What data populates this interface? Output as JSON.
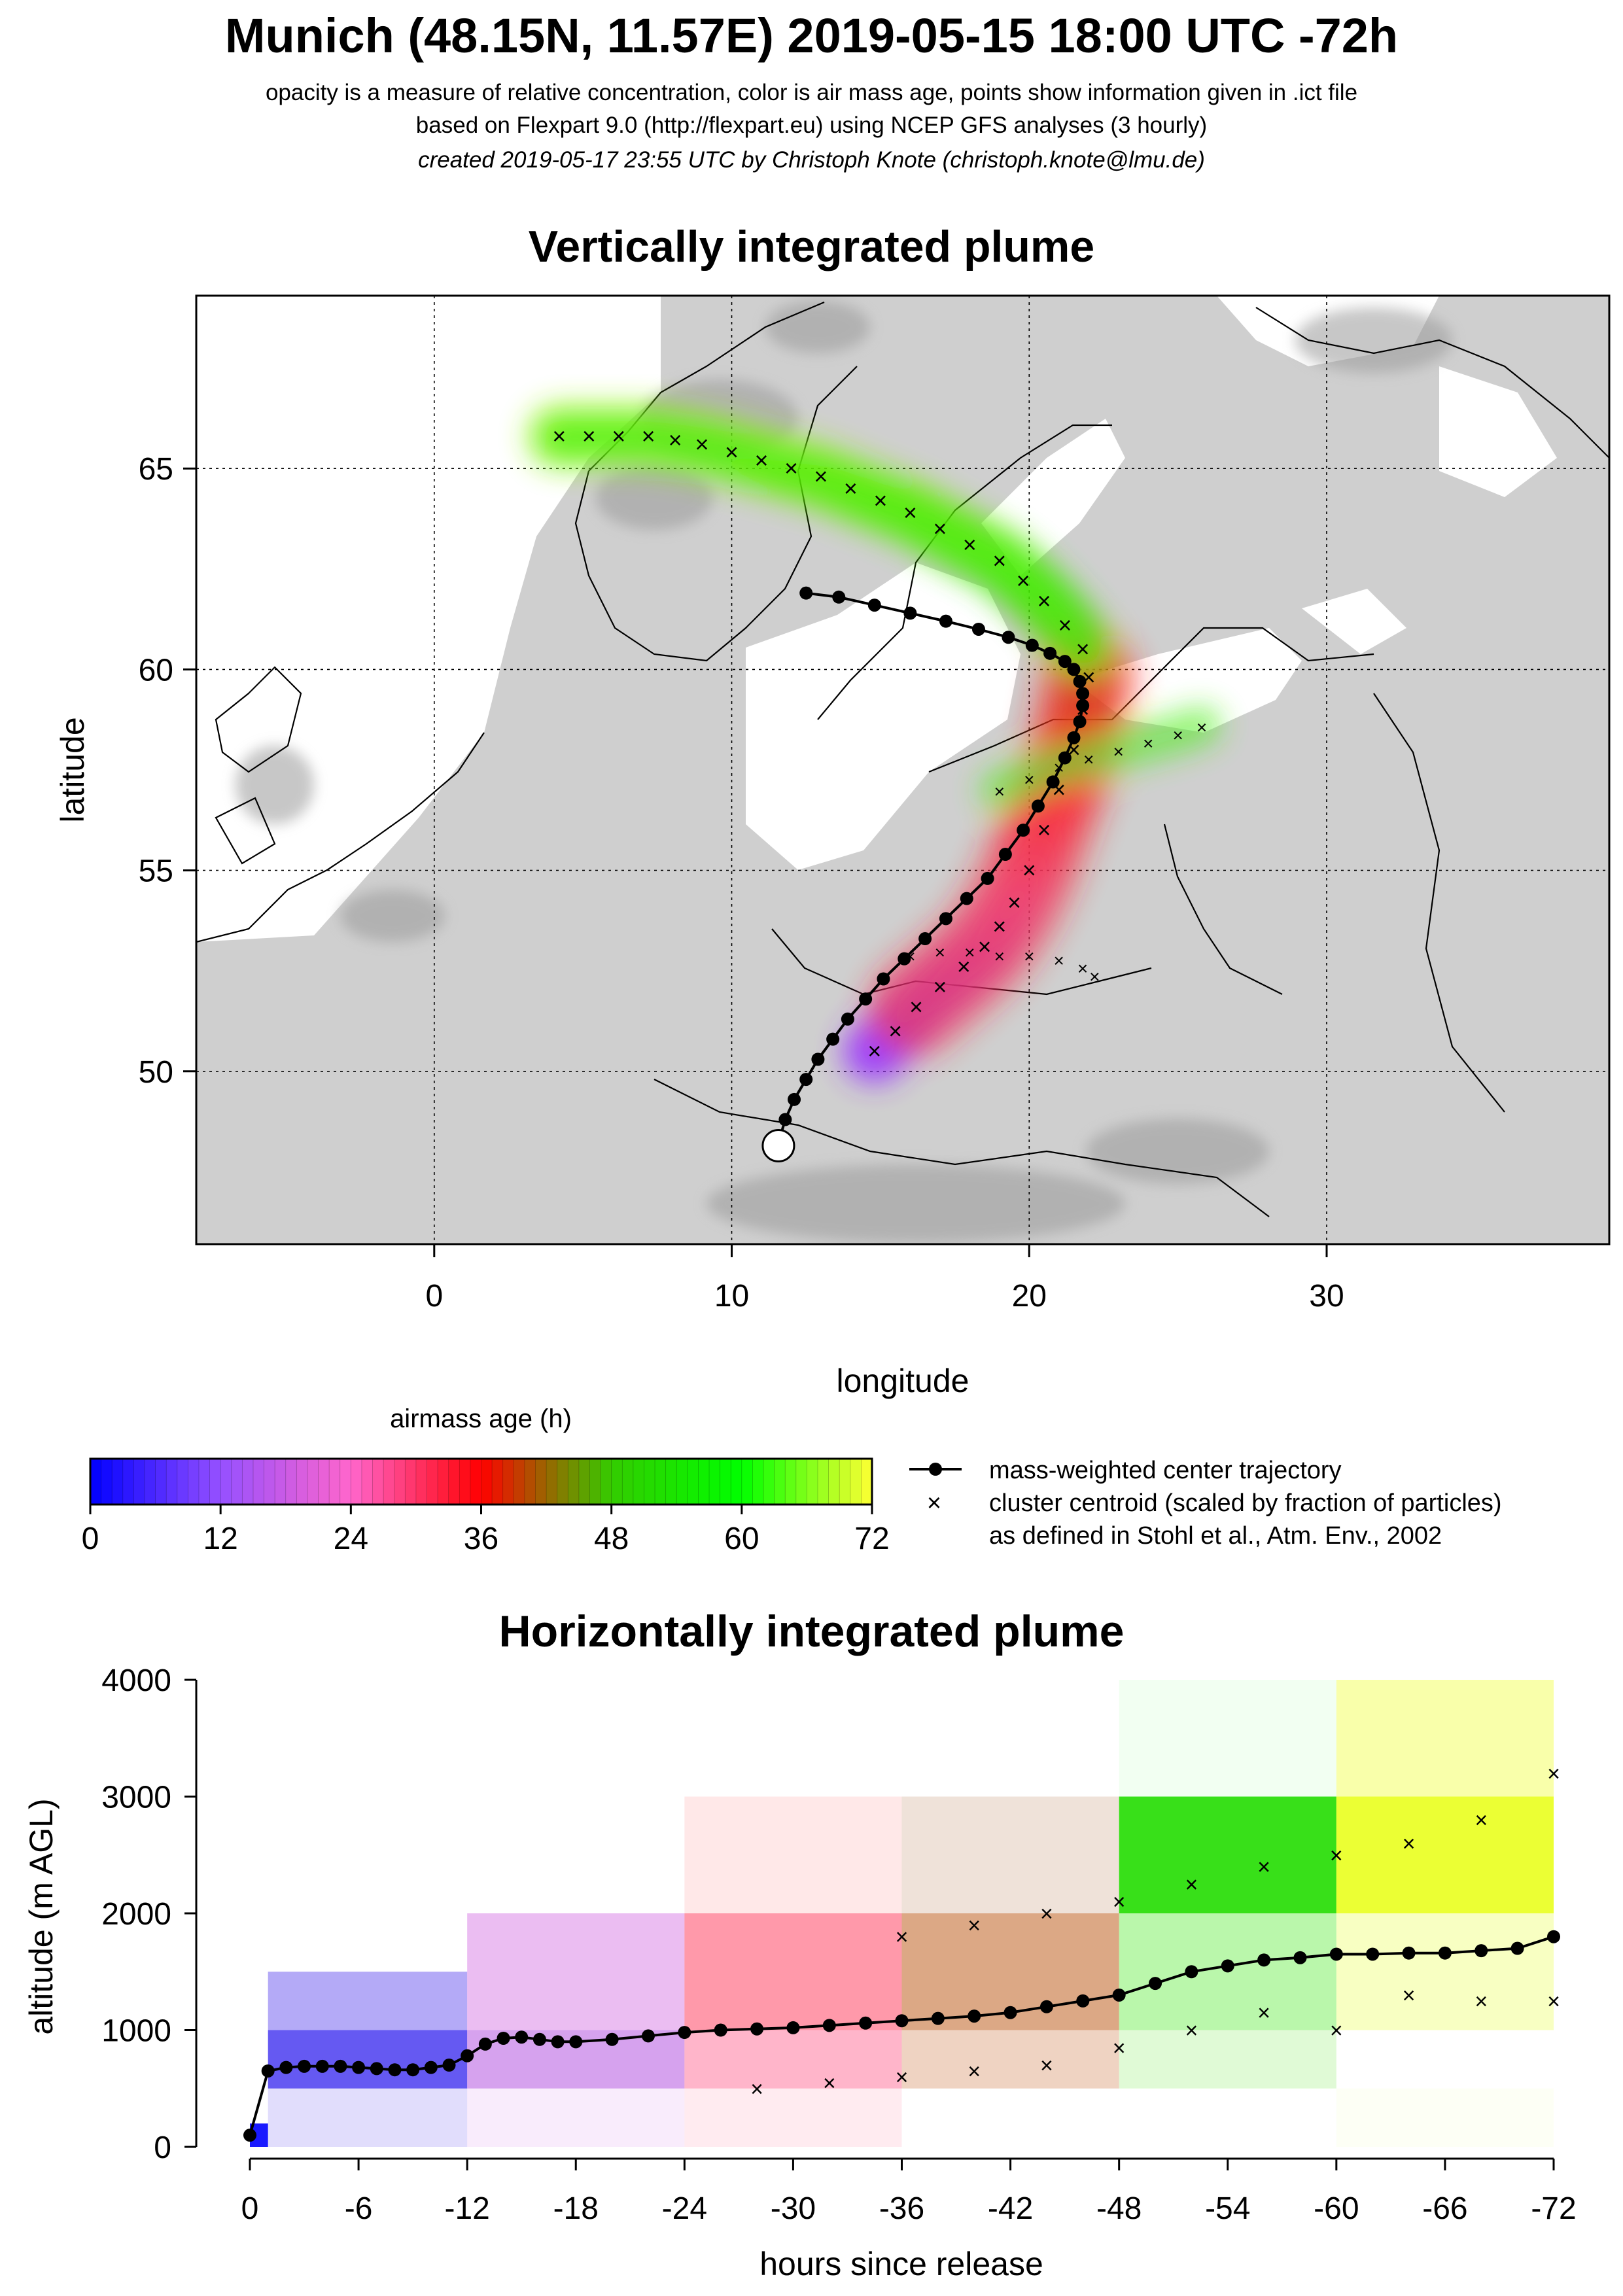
{
  "header": {
    "title": "Munich (48.15N, 11.57E) 2019-05-15 18:00 UTC -72h",
    "subtitle_1": "opacity is a measure of relative concentration, color is air mass age, points show information given in .ict file",
    "subtitle_2": "based on Flexpart 9.0 (http://flexpart.eu) using NCEP GFS analyses (3 hourly)",
    "subtitle_3": "created 2019-05-17 23:55 UTC by Christoph Knote (christoph.knote@lmu.de)"
  },
  "colors": {
    "age_0": "#0000ff",
    "age_24": "#ff66cc",
    "age_36": "#ff0000",
    "age_48": "#33cc00",
    "age_72": "#ffff33",
    "terrain": "#bdbdbd",
    "water": "#ffffff"
  },
  "map_panel": {
    "title": "Vertically integrated plume",
    "xlabel": "longitude",
    "ylabel": "latitude",
    "release_point": {
      "lon": 11.57,
      "lat": 48.15
    },
    "chart_data": {
      "type": "line",
      "title": "Vertically integrated plume",
      "xlabel": "longitude",
      "ylabel": "latitude",
      "xlim": [
        -8,
        39.5
      ],
      "ylim": [
        45.7,
        69.3
      ],
      "x_ticks": [
        0,
        10,
        20,
        30
      ],
      "y_ticks": [
        50,
        55,
        60,
        65
      ],
      "grid": true,
      "series": [
        {
          "name": "mass-weighted center trajectory",
          "lon": [
            11.6,
            11.8,
            12.1,
            12.5,
            12.9,
            13.4,
            13.9,
            14.5,
            15.1,
            15.8,
            16.5,
            17.2,
            17.9,
            18.6,
            19.2,
            19.8,
            20.3,
            20.8,
            21.2,
            21.5,
            21.7,
            21.8,
            21.8,
            21.7,
            21.5,
            21.2,
            20.7,
            20.1,
            19.3,
            18.3,
            17.2,
            16.0,
            14.8,
            13.6,
            12.5
          ],
          "lat": [
            48.3,
            48.8,
            49.3,
            49.8,
            50.3,
            50.8,
            51.3,
            51.8,
            52.3,
            52.8,
            53.3,
            53.8,
            54.3,
            54.8,
            55.4,
            56.0,
            56.6,
            57.2,
            57.8,
            58.3,
            58.7,
            59.1,
            59.4,
            59.7,
            60.0,
            60.2,
            60.4,
            60.6,
            60.8,
            61.0,
            61.2,
            61.4,
            61.6,
            61.8,
            61.9
          ]
        },
        {
          "name": "cluster centroid (scaled by fraction of particles)",
          "lon": [
            4.2,
            5.2,
            6.2,
            7.2,
            8.1,
            9.0,
            10.0,
            11.0,
            12.0,
            13.0,
            14.0,
            15.0,
            16.0,
            17.0,
            18.0,
            19.0,
            19.8,
            20.5,
            21.2,
            21.8,
            22.0,
            21.8,
            21.5,
            21.0,
            20.5,
            20.0,
            19.5,
            19.0,
            18.5,
            17.8,
            17.0,
            16.2,
            15.5,
            14.8
          ],
          "lat": [
            65.8,
            65.8,
            65.8,
            65.8,
            65.7,
            65.6,
            65.4,
            65.2,
            65.0,
            64.8,
            64.5,
            64.2,
            63.9,
            63.5,
            63.1,
            62.7,
            62.2,
            61.7,
            61.1,
            60.5,
            59.8,
            59.0,
            58.0,
            57.0,
            56.0,
            55.0,
            54.2,
            53.6,
            53.1,
            52.6,
            52.1,
            51.6,
            51.0,
            50.5
          ]
        },
        {
          "name": "cluster centroid (scaled by fraction of particles)",
          "lon": [
            16.0,
            17.0,
            18.0,
            19.0,
            20.0,
            21.0,
            21.8,
            22.2
          ],
          "lat": [
            52.9,
            53.0,
            53.0,
            52.9,
            52.9,
            52.8,
            52.6,
            52.4
          ]
        },
        {
          "name": "cluster centroid (scaled by fraction of particles)",
          "lon": [
            19.0,
            20.0,
            21.0,
            22.0,
            23.0,
            24.0,
            25.0,
            25.8
          ],
          "lat": [
            57.0,
            57.3,
            57.6,
            57.8,
            58.0,
            58.2,
            58.4,
            58.6
          ]
        }
      ]
    }
  },
  "legend": {
    "colorbar_title": "airmass age (h)",
    "colorbar_ticks": [
      "0",
      "12",
      "24",
      "36",
      "48",
      "60",
      "72"
    ],
    "trajectory_label": "mass-weighted center trajectory",
    "cluster_label_1": "cluster centroid (scaled by fraction of particles)",
    "cluster_label_2": "as defined in Stohl et al., Atm. Env., 2002"
  },
  "profile_panel": {
    "title": "Horizontally integrated plume",
    "xlabel": "hours since release",
    "ylabel": "altitude (m AGL)",
    "chart_data": {
      "type": "line",
      "title": "Horizontally integrated plume",
      "xlabel": "hours since release",
      "ylabel": "altitude (m AGL)",
      "xlim": [
        0,
        -72
      ],
      "ylim": [
        0,
        4000
      ],
      "x_ticks": [
        0,
        -6,
        -12,
        -18,
        -24,
        -30,
        -36,
        -42,
        -48,
        -54,
        -60,
        -66,
        -72
      ],
      "y_ticks": [
        0,
        1000,
        2000,
        3000,
        4000
      ],
      "series": [
        {
          "name": "mass-weighted center trajectory",
          "x": [
            0,
            -1,
            -2,
            -3,
            -4,
            -5,
            -6,
            -7,
            -8,
            -9,
            -10,
            -11,
            -12,
            -13,
            -14,
            -15,
            -16,
            -17,
            -18,
            -20,
            -22,
            -24,
            -26,
            -28,
            -30,
            -32,
            -34,
            -36,
            -38,
            -40,
            -42,
            -44,
            -46,
            -48,
            -50,
            -52,
            -54,
            -56,
            -58,
            -60,
            -62,
            -64,
            -66,
            -68,
            -70,
            -72
          ],
          "y": [
            100,
            650,
            680,
            690,
            690,
            690,
            680,
            670,
            660,
            660,
            680,
            700,
            780,
            880,
            930,
            940,
            920,
            900,
            900,
            920,
            950,
            980,
            1000,
            1010,
            1020,
            1040,
            1060,
            1080,
            1100,
            1120,
            1150,
            1200,
            1250,
            1300,
            1400,
            1500,
            1550,
            1600,
            1620,
            1650,
            1650,
            1660,
            1660,
            1680,
            1700,
            1800
          ]
        },
        {
          "name": "cluster centroid (scaled by fraction of particles)",
          "x": [
            -36,
            -40,
            -44,
            -48,
            -52,
            -56,
            -60,
            -64,
            -68,
            -72
          ],
          "y": [
            1800,
            1900,
            2000,
            2100,
            2250,
            2400,
            2500,
            2600,
            2800,
            3200
          ]
        },
        {
          "name": "cluster centroid (scaled by fraction of particles)",
          "x": [
            -28,
            -32,
            -36,
            -40,
            -44,
            -48,
            -52,
            -56,
            -60,
            -64,
            -68,
            -72
          ],
          "y": [
            500,
            550,
            600,
            650,
            700,
            850,
            1000,
            1150,
            1000,
            1300,
            1250,
            1250
          ]
        }
      ],
      "concentration_bands": [
        {
          "x_from": 0,
          "x_to": -1,
          "bands": [
            [
              0,
              200,
              "#0000ff",
              0.9
            ]
          ]
        },
        {
          "x_from": -1,
          "x_to": -12,
          "bands": [
            [
              500,
              1000,
              "#4a3cf0",
              0.85
            ],
            [
              1000,
              1500,
              "#6a56f0",
              0.5
            ],
            [
              0,
              500,
              "#6a56f0",
              0.2
            ]
          ]
        },
        {
          "x_from": -12,
          "x_to": -24,
          "bands": [
            [
              500,
              1000,
              "#b455e0",
              0.55
            ],
            [
              1000,
              2000,
              "#d77be6",
              0.5
            ],
            [
              0,
              500,
              "#e3a0f0",
              0.2
            ]
          ]
        },
        {
          "x_from": -24,
          "x_to": -36,
          "bands": [
            [
              500,
              1000,
              "#ff5a8a",
              0.45
            ],
            [
              1000,
              2000,
              "#ff3355",
              0.5
            ],
            [
              0,
              500,
              "#ff7799",
              0.15
            ],
            [
              2000,
              3000,
              "#ff6666",
              0.15
            ]
          ]
        },
        {
          "x_from": -36,
          "x_to": -48,
          "bands": [
            [
              1000,
              2000,
              "#c06020",
              0.55
            ],
            [
              500,
              1000,
              "#d08050",
              0.35
            ],
            [
              2000,
              3000,
              "#b07040",
              0.2
            ]
          ]
        },
        {
          "x_from": -48,
          "x_to": -60,
          "bands": [
            [
              2000,
              3000,
              "#22dd00",
              0.9
            ],
            [
              1000,
              2000,
              "#66ee44",
              0.45
            ],
            [
              500,
              1000,
              "#99ee77",
              0.3
            ],
            [
              3000,
              4000,
              "#aaffaa",
              0.15
            ]
          ]
        },
        {
          "x_from": -60,
          "x_to": -72,
          "bands": [
            [
              2000,
              3000,
              "#e8ff10",
              0.85
            ],
            [
              1000,
              2000,
              "#eeff66",
              0.4
            ],
            [
              3000,
              4000,
              "#f3ff55",
              0.5
            ],
            [
              0,
              500,
              "#f4ffcc",
              0.2
            ]
          ]
        }
      ]
    }
  }
}
